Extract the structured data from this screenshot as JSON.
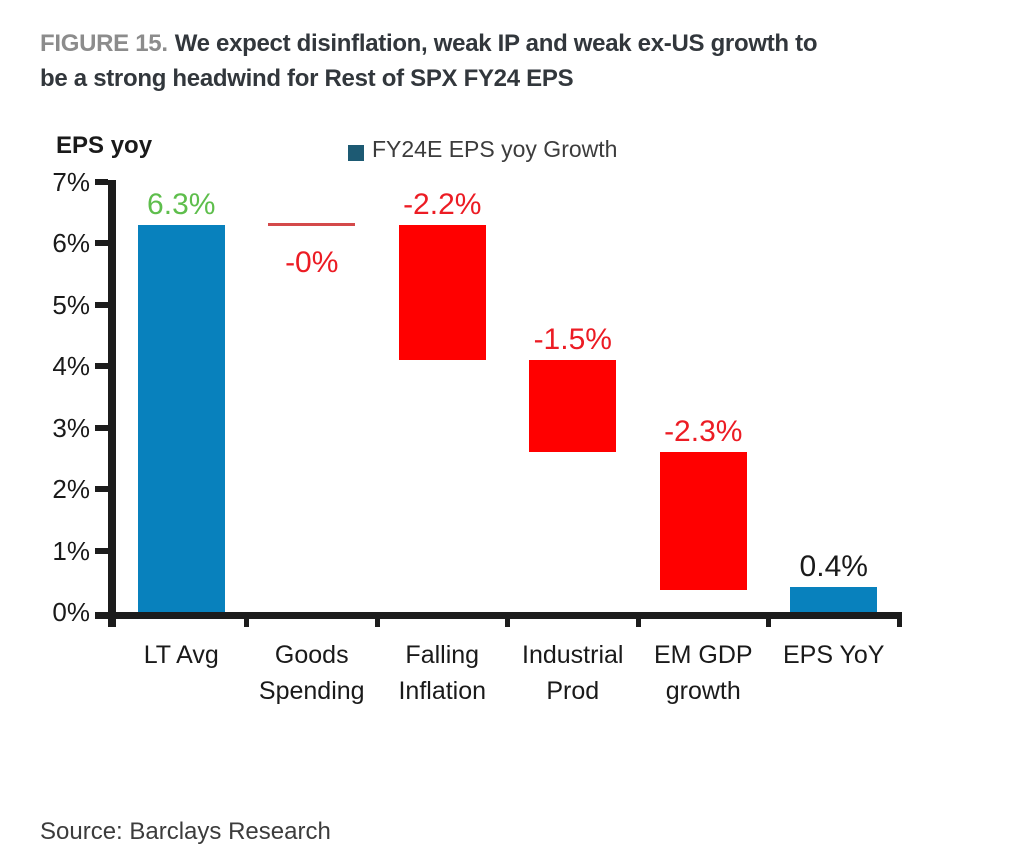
{
  "header": {
    "figure_label": "FIGURE 15.",
    "title_line1": "We expect disinflation, weak IP and weak ex-US growth to",
    "title_line2": "be a strong headwind for Rest of SPX FY24 EPS"
  },
  "legend": {
    "label": "FY24E EPS yoy Growth",
    "swatch_color": "#1D5A73"
  },
  "footer": {
    "source": "Source: Barclays Research"
  },
  "colors": {
    "bar_blue": "#0881BD",
    "bar_red": "#FF0000",
    "zero_change_line_red": "#D4494A",
    "label_green": "#5EBE4C",
    "label_red": "#EC1C24",
    "label_black": "#1A1A1A",
    "axis_black": "#1C1C1C",
    "legend_navy": "#1D5A73",
    "figure_number_gray": "#8C8C8C",
    "title_dark": "#32373C"
  },
  "chart_data": {
    "type": "bar",
    "subtype": "waterfall",
    "title": "FY24E EPS yoy Growth",
    "y_axis_title": "EPS yoy",
    "xlabel": "",
    "ylabel": "EPS yoy",
    "ylim": [
      0,
      7
    ],
    "grid": false,
    "legend_position": "top",
    "y_ticks": [
      "0%",
      "1%",
      "2%",
      "3%",
      "4%",
      "5%",
      "6%",
      "7%"
    ],
    "categories": [
      "LT Avg",
      "Goods Spending",
      "Falling Inflation",
      "Industrial Prod",
      "EM GDP growth",
      "EPS YoY"
    ],
    "values": [
      6.3,
      -0.0,
      -2.2,
      -1.5,
      -2.3,
      0.4
    ],
    "steps": [
      {
        "category": "LT Avg",
        "label": "6.3%",
        "value": 6.3,
        "start": 0,
        "end": 6.3,
        "style": "bar",
        "bar_color": "#0881BD",
        "label_color": "#5EBE4C",
        "label_position": "above"
      },
      {
        "category": "Goods Spending",
        "label": "-0%",
        "value": -0.0,
        "start": 6.3,
        "end": 6.3,
        "style": "line",
        "bar_color": "#D4494A",
        "label_color": "#EC1C24",
        "label_position": "below"
      },
      {
        "category": "Falling Inflation",
        "label": "-2.2%",
        "value": -2.2,
        "start": 6.3,
        "end": 4.1,
        "style": "bar",
        "bar_color": "#FF0000",
        "label_color": "#EC1C24",
        "label_position": "above"
      },
      {
        "category": "Industrial Prod",
        "label": "-1.5%",
        "value": -1.5,
        "start": 4.1,
        "end": 2.6,
        "style": "bar",
        "bar_color": "#FF0000",
        "label_color": "#EC1C24",
        "label_position": "above"
      },
      {
        "category": "EM GDP growth",
        "label": "-2.3%",
        "value": -2.3,
        "start": 2.6,
        "end": 0.35,
        "style": "bar",
        "bar_color": "#FF0000",
        "label_color": "#EC1C24",
        "label_position": "above"
      },
      {
        "category": "EPS YoY",
        "label": "0.4%",
        "value": 0.4,
        "start": 0,
        "end": 0.4,
        "style": "bar",
        "bar_color": "#0881BD",
        "label_color": "#1A1A1A",
        "label_position": "above"
      }
    ]
  }
}
